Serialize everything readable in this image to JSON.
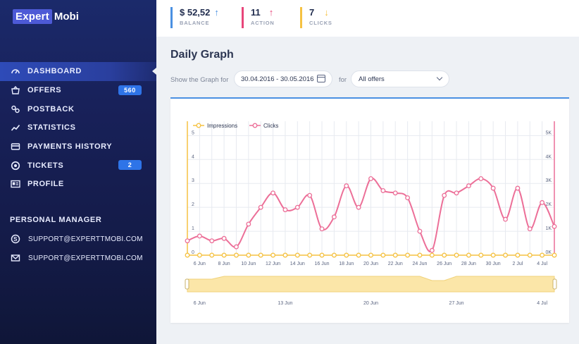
{
  "brand": {
    "part1": "Expert",
    "part2": "Mobi"
  },
  "stats": [
    {
      "value": "$ 52,52",
      "label": "BALANCE",
      "color": "#4a90e2",
      "arrow": "↑"
    },
    {
      "value": "11",
      "label": "ACTION",
      "color": "#e8457a",
      "arrow": "↑"
    },
    {
      "value": "7",
      "label": "CLICKS",
      "color": "#f5c242",
      "arrow": "↓"
    }
  ],
  "nav": [
    {
      "label": "DASHBOARD",
      "icon": "gauge-icon",
      "active": true
    },
    {
      "label": "OFFERS",
      "icon": "basket-icon",
      "badge": "560"
    },
    {
      "label": "POSTBACK",
      "icon": "link-icon"
    },
    {
      "label": "STATISTICS",
      "icon": "trend-icon"
    },
    {
      "label": "PAYMENTS HISTORY",
      "icon": "card-icon"
    },
    {
      "label": "TICKETS",
      "icon": "lifebuoy-icon",
      "badge": "2"
    },
    {
      "label": "PROFILE",
      "icon": "id-card-icon"
    }
  ],
  "personal_manager": {
    "title": "PERSONAL MANAGER",
    "contacts": [
      {
        "text": "SUPPORT@EXPERTTMOBI.COM",
        "icon": "skype-icon"
      },
      {
        "text": "SUPPORT@EXPERTTMOBI.COM",
        "icon": "mail-icon"
      }
    ]
  },
  "page": {
    "title": "Daily Graph",
    "show_label": "Show the Graph for",
    "date_range": "30.04.2016 - 30.05.2016",
    "for_label": "for",
    "offer_select": "All offers"
  },
  "colors": {
    "impressions": "#f5c242",
    "clicks": "#ec6f98",
    "accent": "#4a90e2"
  },
  "chart_data": {
    "type": "line",
    "x": [
      "5 Jun",
      "6 Jun",
      "7 Jun",
      "8 Jun",
      "9 Jun",
      "10 Jun",
      "11 Jun",
      "12 Jun",
      "13 Jun",
      "14 Jun",
      "15 Jun",
      "16 Jun",
      "17 Jun",
      "18 Jun",
      "19 Jun",
      "20 Jun",
      "21 Jun",
      "22 Jun",
      "23 Jun",
      "24 Jun",
      "25 Jun",
      "26 Jun",
      "27 Jun",
      "28 Jun",
      "29 Jun",
      "30 Jun",
      "1 Jul",
      "2 Jul",
      "3 Jul",
      "4 Jul",
      "5 Jul"
    ],
    "x_tick_labels": [
      "6 Jun",
      "8 Jun",
      "10 Jun",
      "12 Jun",
      "14 Jun",
      "16 Jun",
      "18 Jun",
      "20 Jun",
      "22 Jun",
      "24 Jun",
      "26 Jun",
      "28 Jun",
      "30 Jun",
      "2 Jul",
      "4 Jul"
    ],
    "series": [
      {
        "name": "Impressions",
        "axis": "left",
        "color": "#f5c242",
        "values": [
          0,
          0,
          0,
          0,
          0,
          0,
          0,
          0,
          0,
          0,
          0,
          0,
          0,
          0,
          0,
          0,
          0,
          0,
          0,
          0,
          0,
          0,
          0,
          0,
          0,
          0,
          0,
          0,
          0,
          0,
          0
        ]
      },
      {
        "name": "Clicks",
        "axis": "right",
        "color": "#ec6f98",
        "values": [
          600,
          800,
          600,
          700,
          350,
          1300,
          2000,
          2600,
          1900,
          2000,
          2500,
          1100,
          1600,
          2900,
          2000,
          3200,
          2700,
          2600,
          2400,
          1000,
          200,
          2500,
          2600,
          2900,
          3200,
          2800,
          1500,
          2800,
          1100,
          2200,
          1200
        ]
      }
    ],
    "left_axis": {
      "ticks": [
        "0",
        "1",
        "2",
        "3",
        "4",
        "5"
      ],
      "ylim": [
        0,
        5
      ]
    },
    "right_axis": {
      "ticks": [
        "0K",
        "1K",
        "2K",
        "3K",
        "4K",
        "5K"
      ],
      "ylim": [
        0,
        5000
      ]
    },
    "navigator_ticks": [
      "6 Jun",
      "13 Jun",
      "20 Jun",
      "27 Jun",
      "4 Jul"
    ],
    "grid": true,
    "legend_position": "top-left"
  }
}
